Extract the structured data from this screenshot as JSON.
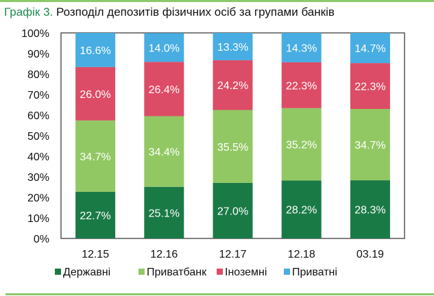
{
  "title_prefix": "Графік 3.",
  "title": "Розподіл депозитів фізичних осіб за групами банків",
  "chart_data": {
    "type": "bar",
    "stacked": true,
    "categories": [
      "12.15",
      "12.16",
      "12.17",
      "12.18",
      "03.19"
    ],
    "series": [
      {
        "name": "Державні",
        "color": "#1a7a46",
        "values": [
          22.7,
          25.1,
          27.0,
          28.2,
          28.3
        ],
        "labels": [
          "22.7%",
          "25.1%",
          "27.0%",
          "28.2%",
          "28.3%"
        ]
      },
      {
        "name": "Приватбанк",
        "color": "#92c864",
        "values": [
          34.7,
          34.4,
          35.5,
          35.2,
          34.7
        ],
        "labels": [
          "34.7%",
          "34.4%",
          "35.5%",
          "35.2%",
          "34.7%"
        ]
      },
      {
        "name": "Іноземні",
        "color": "#dd4c66",
        "values": [
          26.0,
          26.4,
          24.2,
          22.3,
          22.3
        ],
        "labels": [
          "26.0%",
          "26.4%",
          "24.2%",
          "22.3%",
          "22.3%"
        ]
      },
      {
        "name": "Приватні",
        "color": "#47ade2",
        "values": [
          16.6,
          14.0,
          13.3,
          14.3,
          14.7
        ],
        "labels": [
          "16.6%",
          "14.0%",
          "13.3%",
          "14.3%",
          "14.7%"
        ]
      }
    ],
    "yticks": [
      "0%",
      "10%",
      "20%",
      "30%",
      "40%",
      "50%",
      "60%",
      "70%",
      "80%",
      "90%",
      "100%"
    ],
    "ylim": [
      0,
      100
    ],
    "grid": false,
    "legend": "bottom"
  }
}
